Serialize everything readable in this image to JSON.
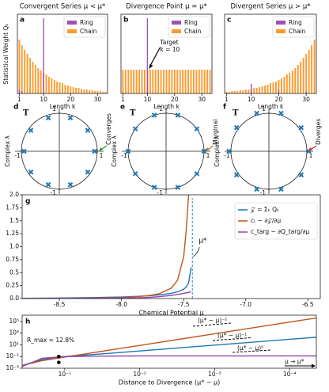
{
  "chart_data": [
    {
      "type": "bar",
      "label": "a",
      "title": "Convergent Series μ < μ*",
      "ylabel": "Statistical Weight Qₖ",
      "xlabel": "Length k",
      "x": [
        1,
        2,
        3,
        4,
        5,
        6,
        7,
        8,
        9,
        10,
        11,
        12,
        13,
        14,
        15,
        16,
        17,
        18,
        19,
        20,
        21,
        22,
        23,
        24,
        25,
        26,
        27,
        28,
        29,
        30,
        31,
        32,
        33
      ],
      "xlim": [
        0.3,
        33.7
      ],
      "xticks": [
        1,
        10,
        20,
        30
      ],
      "ylim": [
        0,
        1
      ],
      "legend": "upper right",
      "series": [
        {
          "name": "Chain",
          "color": "#ff9a2e",
          "values": [
            0.68,
            0.61,
            0.55,
            0.5,
            0.45,
            0.4,
            0.36,
            0.32,
            0.29,
            0.26,
            0.24,
            0.21,
            0.19,
            0.17,
            0.15,
            0.14,
            0.13,
            0.11,
            0.1,
            0.09,
            0.08,
            0.07,
            0.07,
            0.06,
            0.05,
            0.05,
            0.04,
            0.04,
            0.03,
            0.03,
            0.03,
            0.02,
            0.02
          ]
        },
        {
          "name": "Ring",
          "color": "#a050b4",
          "values": [
            0.05,
            0.03,
            0,
            0,
            0,
            0,
            0,
            0,
            0,
            0.95,
            0,
            0,
            0,
            0,
            0,
            0,
            0,
            0,
            0,
            0,
            0,
            0,
            0,
            0,
            0,
            0,
            0,
            0,
            0,
            0,
            0,
            0,
            0
          ]
        }
      ]
    },
    {
      "type": "bar",
      "label": "b",
      "title": "Divergence Point μ = μ*",
      "xlabel": "Length k",
      "x": [
        1,
        2,
        3,
        4,
        5,
        6,
        7,
        8,
        9,
        10,
        11,
        12,
        13,
        14,
        15,
        16,
        17,
        18,
        19,
        20,
        21,
        22,
        23,
        24,
        25,
        26,
        27,
        28,
        29,
        30,
        31,
        32,
        33
      ],
      "xlim": [
        0.3,
        33.7
      ],
      "xticks": [
        1,
        10,
        20,
        30
      ],
      "ylim": [
        0,
        1
      ],
      "legend": "upper right",
      "annotations": [
        "Target",
        "k = 10"
      ],
      "series": [
        {
          "name": "Chain",
          "color": "#ff9a2e",
          "values": [
            0.3,
            0.3,
            0.3,
            0.3,
            0.3,
            0.3,
            0.3,
            0.3,
            0.3,
            0.3,
            0.3,
            0.3,
            0.3,
            0.3,
            0.3,
            0.3,
            0.3,
            0.3,
            0.3,
            0.3,
            0.3,
            0.3,
            0.3,
            0.3,
            0.3,
            0.3,
            0.3,
            0.3,
            0.3,
            0.3,
            0.3,
            0.3,
            0.3
          ]
        },
        {
          "name": "Ring",
          "color": "#a050b4",
          "values": [
            0,
            0,
            0,
            0,
            0,
            0,
            0,
            0,
            0,
            0.95,
            0,
            0,
            0,
            0,
            0,
            0,
            0,
            0,
            0,
            0,
            0,
            0,
            0,
            0,
            0,
            0,
            0,
            0,
            0,
            0,
            0,
            0,
            0
          ]
        }
      ]
    },
    {
      "type": "bar",
      "label": "c",
      "title": "Divergent Series μ > μ*",
      "xlabel": "Length k",
      "x": [
        1,
        2,
        3,
        4,
        5,
        6,
        7,
        8,
        9,
        10,
        11,
        12,
        13,
        14,
        15,
        16,
        17,
        18,
        19,
        20,
        21,
        22,
        23,
        24,
        25,
        26,
        27,
        28,
        29,
        30,
        31,
        32,
        33
      ],
      "xlim": [
        0.3,
        33.7
      ],
      "xticks": [
        1,
        10,
        20,
        30
      ],
      "ylim": [
        0,
        1
      ],
      "legend": "upper right",
      "series": [
        {
          "name": "Chain",
          "color": "#ff9a2e",
          "values": [
            0.02,
            0.02,
            0.03,
            0.03,
            0.03,
            0.04,
            0.04,
            0.05,
            0.05,
            0.06,
            0.07,
            0.07,
            0.08,
            0.09,
            0.1,
            0.11,
            0.13,
            0.14,
            0.15,
            0.17,
            0.19,
            0.21,
            0.24,
            0.26,
            0.29,
            0.32,
            0.36,
            0.4,
            0.45,
            0.5,
            0.55,
            0.61,
            0.68
          ]
        },
        {
          "name": "Ring",
          "color": "#a050b4",
          "values": [
            0,
            0,
            0,
            0,
            0,
            0,
            0,
            0,
            0,
            0.12,
            0,
            0,
            0,
            0,
            0,
            0,
            0,
            0,
            0,
            0.05,
            0,
            0,
            0,
            0,
            0,
            0,
            0,
            0,
            0,
            0.02,
            0,
            0,
            0
          ]
        }
      ]
    },
    {
      "type": "scatter",
      "label": "d",
      "ylabel": "Complex λ",
      "annotations": [
        "T",
        "Converges"
      ],
      "arrow_color": "#2ca02c",
      "xlim": [
        -1.25,
        1.25
      ],
      "ylim": [
        -1.25,
        1.25
      ],
      "xticks": [
        -1,
        1
      ],
      "yticks": [
        -1,
        1
      ],
      "color": "#1f77b4",
      "x": [
        0.93,
        0.75,
        0.29,
        -0.29,
        -0.75,
        -0.93,
        -0.75,
        -0.29,
        0.29,
        0.75
      ],
      "y": [
        0,
        0.55,
        0.88,
        0.88,
        0.55,
        0,
        -0.55,
        -0.88,
        -0.88,
        -0.55
      ]
    },
    {
      "type": "scatter",
      "label": "e",
      "ylabel": "Complex λ",
      "annotations": [
        "T",
        "Marginal"
      ],
      "arrow_color": "#c0761e",
      "xlim": [
        -1.25,
        1.25
      ],
      "ylim": [
        -1.25,
        1.25
      ],
      "xticks": [
        -1,
        1
      ],
      "yticks": [
        -1,
        1
      ],
      "color": "#1f77b4",
      "x": [
        1,
        0.81,
        0.31,
        -0.31,
        -0.81,
        -1,
        -0.81,
        -0.31,
        0.31,
        0.81
      ],
      "y": [
        0,
        0.59,
        0.95,
        0.95,
        0.59,
        0,
        -0.59,
        -0.95,
        -0.95,
        -0.59
      ]
    },
    {
      "type": "scatter",
      "label": "f",
      "ylabel": "Complex λ",
      "annotations": [
        "T",
        "Diverges"
      ],
      "arrow_color": "#d62728",
      "xlim": [
        -1.25,
        1.25
      ],
      "ylim": [
        -1.25,
        1.25
      ],
      "xticks": [
        -1,
        1
      ],
      "yticks": [
        -1,
        1
      ],
      "color": "#1f77b4",
      "x": [
        1.05,
        0.85,
        0.32,
        -0.32,
        -0.85,
        -1.05,
        -0.85,
        -0.32,
        0.32,
        0.85
      ],
      "y": [
        0,
        0.62,
        1,
        1,
        0.62,
        0,
        -0.62,
        -1,
        -1,
        -0.62
      ]
    },
    {
      "type": "line",
      "label": "g",
      "xlabel": "Chemical Potential μ",
      "legend": "upper right",
      "annotations": [
        "μ*"
      ],
      "vlines": [
        -7.43
      ],
      "xlim": [
        -8.8,
        -6.4
      ],
      "xticks": [
        -8.5,
        {
          "value": -8,
          "label": "-8.0"
        },
        -7.5,
        {
          "value": -7,
          "label": "-7.0"
        },
        -6.5
      ],
      "ylim": [
        0,
        2
      ],
      "yticks": [
        {
          "value": 0,
          "label": "0.0"
        },
        0.25,
        0.5,
        0.75,
        {
          "value": 1,
          "label": "1.0"
        },
        1.25,
        1.5,
        1.75,
        {
          "value": 2,
          "label": "2.0"
        }
      ],
      "x": [
        -8.8,
        -8.5,
        -8.2,
        -8.0,
        -7.8,
        -7.7,
        -7.6,
        -7.55,
        -7.5,
        -7.48,
        -7.46,
        -7.44
      ],
      "series": [
        {
          "name": "𝒵 = Σₖ Qₖ",
          "color": "#1f77b4",
          "values": [
            0.005,
            0.01,
            0.02,
            0.03,
            0.05,
            0.07,
            0.1,
            0.13,
            0.18,
            0.22,
            0.3,
            0.6
          ]
        },
        {
          "name": "cₜ ~ ∂𝒵/∂μ",
          "color": "#c0561e",
          "values": [
            0.001,
            0.003,
            0.01,
            0.02,
            0.05,
            0.09,
            0.2,
            0.35,
            0.8,
            1.3,
            2,
            null
          ]
        },
        {
          "name": "c_targ ~ ∂Q_targ/∂μ",
          "color": "#8e44ad",
          "values": [
            0,
            0,
            0.003,
            0.008,
            0.02,
            0.035,
            0.06,
            0.08,
            0.1,
            0.11,
            0.12,
            0.13
          ]
        }
      ]
    },
    {
      "type": "line",
      "label": "h",
      "xlabel": "Distance to Divergence (μ* − μ)",
      "xscale": "log",
      "yscale": "log",
      "annotations": [
        "(μ* − μ)⁻²",
        "(μ* − μ)⁻¹",
        "(μ* − μ)⁰",
        "R_max = 12.8%",
        "μ → μ*"
      ],
      "highlight": {
        "x": [
          0.12,
          0.12
        ],
        "y": [
          0.1,
          0.01
        ]
      },
      "xlim": [
        0.37,
        4.4e-05
      ],
      "xticks": [
        {
          "value": 0.1,
          "label": "10⁻¹"
        },
        {
          "value": 0.01,
          "label": "10⁻²"
        },
        {
          "value": 0.001,
          "label": "10⁻³"
        },
        {
          "value": 0.0001,
          "label": "10⁻⁴"
        }
      ],
      "ylim": [
        0.001,
        1200000
      ],
      "yticks": [
        {
          "value": 0.001,
          "label": "10⁻³"
        },
        {
          "value": 0.1,
          "label": "10⁻¹"
        },
        {
          "value": 10,
          "label": "10¹"
        },
        {
          "value": 1000,
          "label": "10³"
        },
        {
          "value": 100000,
          "label": "10⁵"
        }
      ],
      "x": [
        0.37,
        0.2,
        0.1,
        0.03,
        0.01,
        0.001,
        0.0001,
        4.4e-05
      ],
      "series": [
        {
          "name": "𝒵",
          "color": "#1f77b4",
          "values": [
            0.003,
            0.03,
            0.1,
            0.3,
            0.9,
            9,
            90,
            200
          ]
        },
        {
          "name": "cₜ",
          "color": "#c0561e",
          "values": [
            0.003,
            0.02,
            0.08,
            0.9,
            8,
            800,
            80000,
            400000
          ]
        },
        {
          "name": "c_targ",
          "color": "#8e44ad",
          "values": [
            0.002,
            0.05,
            0.1,
            0.12,
            0.128,
            0.128,
            0.128,
            0.128
          ]
        }
      ]
    }
  ]
}
